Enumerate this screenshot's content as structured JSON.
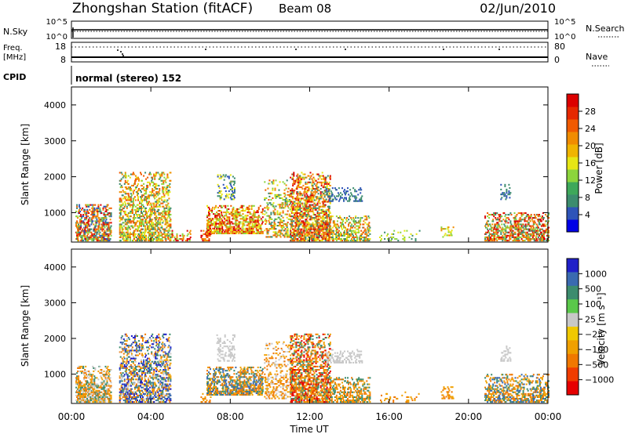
{
  "header": {
    "station": "Zhongshan Station (fitACF)",
    "beam": "Beam 08",
    "date": "02/Jun/2010"
  },
  "panels": {
    "nsky": {
      "label": "N.Sky",
      "right_label": "N.Search",
      "left_ticks": [
        "10^5",
        "10^0"
      ],
      "right_ticks": [
        "10^5",
        "10^0"
      ]
    },
    "freq": {
      "label_top": "Freq.",
      "label_unit": "[MHz]",
      "right_label": "Nave",
      "left_ticks": [
        "18",
        "8"
      ],
      "right_ticks": [
        "80",
        "0"
      ]
    },
    "cpid": {
      "label": "CPID",
      "value": "normal (stereo) 152"
    }
  },
  "colors": {
    "frame": "#000000",
    "background": "#ffffff"
  },
  "chart_data": [
    {
      "type": "heatmap",
      "name_key": "power",
      "ylabel": "Slant Range [km]",
      "xlabel": "",
      "yticks": [
        "1000",
        "2000",
        "3000",
        "4000"
      ],
      "ylim": [
        180,
        4500
      ],
      "xlim": [
        0,
        24
      ],
      "colorbar": {
        "label": "Power [dB]",
        "ticks": [
          "4",
          "8",
          "12",
          "16",
          "20",
          "24",
          "28"
        ],
        "colors": [
          "#0000e6",
          "#2e54b8",
          "#3c8c6e",
          "#3ea85a",
          "#8cd43c",
          "#e6e614",
          "#f0b400",
          "#f08c00",
          "#f05a00",
          "#e62800",
          "#dc0000"
        ]
      },
      "clusters": [
        {
          "t0": 0.2,
          "t1": 2.0,
          "r0": 200,
          "r1": 1200,
          "d": 0.55,
          "vals": [
            4,
            8,
            12,
            20,
            24,
            28
          ]
        },
        {
          "t0": 2.4,
          "t1": 5.0,
          "r0": 200,
          "r1": 2100,
          "d": 0.45,
          "vals": [
            8,
            12,
            16,
            20,
            24
          ]
        },
        {
          "t0": 5.0,
          "t1": 6.0,
          "r0": 200,
          "r1": 500,
          "d": 0.25,
          "vals": [
            12,
            20,
            28
          ]
        },
        {
          "t0": 6.5,
          "t1": 7.0,
          "r0": 200,
          "r1": 500,
          "d": 0.35,
          "vals": [
            20,
            24,
            28
          ]
        },
        {
          "t0": 6.8,
          "t1": 9.6,
          "r0": 400,
          "r1": 1200,
          "d": 0.55,
          "vals": [
            12,
            16,
            20,
            24,
            28
          ]
        },
        {
          "t0": 7.3,
          "t1": 8.2,
          "r0": 1350,
          "r1": 2100,
          "d": 0.25,
          "vals": [
            4,
            8,
            16
          ]
        },
        {
          "t0": 9.7,
          "t1": 11.0,
          "r0": 300,
          "r1": 1900,
          "d": 0.3,
          "vals": [
            8,
            12,
            16,
            20,
            24
          ]
        },
        {
          "t0": 11.0,
          "t1": 13.0,
          "r0": 200,
          "r1": 2100,
          "d": 0.55,
          "vals": [
            8,
            16,
            20,
            24,
            28
          ]
        },
        {
          "t0": 12.8,
          "t1": 14.6,
          "r0": 1300,
          "r1": 1700,
          "d": 0.3,
          "vals": [
            4,
            8
          ]
        },
        {
          "t0": 13.0,
          "t1": 15.0,
          "r0": 200,
          "r1": 900,
          "d": 0.45,
          "vals": [
            8,
            12,
            16,
            20,
            24
          ]
        },
        {
          "t0": 15.5,
          "t1": 17.5,
          "r0": 200,
          "r1": 500,
          "d": 0.12,
          "vals": [
            8,
            12,
            16
          ]
        },
        {
          "t0": 18.6,
          "t1": 19.2,
          "r0": 300,
          "r1": 650,
          "d": 0.3,
          "vals": [
            12,
            16,
            20
          ]
        },
        {
          "t0": 20.8,
          "t1": 24.0,
          "r0": 200,
          "r1": 1000,
          "d": 0.45,
          "vals": [
            8,
            12,
            20,
            24,
            28
          ]
        },
        {
          "t0": 21.6,
          "t1": 22.1,
          "r0": 1350,
          "r1": 1800,
          "d": 0.3,
          "vals": [
            4,
            8
          ]
        }
      ]
    },
    {
      "type": "heatmap",
      "name_key": "velocity",
      "ylabel": "Slant Range [km]",
      "xlabel": "Time UT",
      "xticks": [
        "00:00",
        "04:00",
        "08:00",
        "12:00",
        "16:00",
        "20:00",
        "00:00"
      ],
      "yticks": [
        "1000",
        "2000",
        "3000",
        "4000"
      ],
      "ylim": [
        180,
        4500
      ],
      "xlim": [
        0,
        24
      ],
      "colorbar": {
        "label": "Velocity [m s⁻¹]",
        "ticks": [
          "1000",
          "500",
          "100",
          "25",
          "−25",
          "−100",
          "−500",
          "−1000"
        ],
        "colors": [
          "#2020c8",
          "#3a6ab0",
          "#3c8c6e",
          "#5ac84a",
          "#c8c8c8",
          "#f0c800",
          "#f0a000",
          "#f07800",
          "#f03c00",
          "#e60000"
        ]
      },
      "clusters": [
        {
          "t0": 0.2,
          "t1": 2.0,
          "r0": 200,
          "r1": 1200,
          "d": 0.55,
          "vals": [
            -100,
            -500,
            25,
            100
          ]
        },
        {
          "t0": 2.4,
          "t1": 5.0,
          "r0": 200,
          "r1": 2100,
          "d": 0.45,
          "vals": [
            500,
            1000,
            100,
            25,
            -100,
            -500
          ]
        },
        {
          "t0": 6.5,
          "t1": 7.0,
          "r0": 200,
          "r1": 500,
          "d": 0.35,
          "vals": [
            -500,
            -100
          ]
        },
        {
          "t0": 6.8,
          "t1": 9.6,
          "r0": 400,
          "r1": 1200,
          "d": 0.55,
          "vals": [
            100,
            500,
            -100,
            -500
          ]
        },
        {
          "t0": 7.3,
          "t1": 8.2,
          "r0": 1350,
          "r1": 2100,
          "d": 0.25,
          "vals": [
            25,
            -25
          ]
        },
        {
          "t0": 9.7,
          "t1": 11.0,
          "r0": 300,
          "r1": 1900,
          "d": 0.3,
          "vals": [
            -100,
            -500,
            25
          ]
        },
        {
          "t0": 11.0,
          "t1": 13.0,
          "r0": 200,
          "r1": 2100,
          "d": 0.55,
          "vals": [
            -100,
            -500,
            -1000,
            100
          ]
        },
        {
          "t0": 12.8,
          "t1": 14.6,
          "r0": 1300,
          "r1": 1700,
          "d": 0.3,
          "vals": [
            25,
            -25
          ]
        },
        {
          "t0": 13.0,
          "t1": 15.0,
          "r0": 200,
          "r1": 900,
          "d": 0.45,
          "vals": [
            -100,
            -500,
            100
          ]
        },
        {
          "t0": 15.5,
          "t1": 17.5,
          "r0": 200,
          "r1": 500,
          "d": 0.12,
          "vals": [
            -100,
            -500
          ]
        },
        {
          "t0": 18.6,
          "t1": 19.2,
          "r0": 300,
          "r1": 650,
          "d": 0.3,
          "vals": [
            -500,
            -100
          ]
        },
        {
          "t0": 20.8,
          "t1": 24.0,
          "r0": 200,
          "r1": 1000,
          "d": 0.45,
          "vals": [
            -100,
            -500,
            100,
            500
          ]
        },
        {
          "t0": 21.6,
          "t1": 22.1,
          "r0": 1350,
          "r1": 1800,
          "d": 0.3,
          "vals": [
            25
          ]
        }
      ]
    }
  ]
}
